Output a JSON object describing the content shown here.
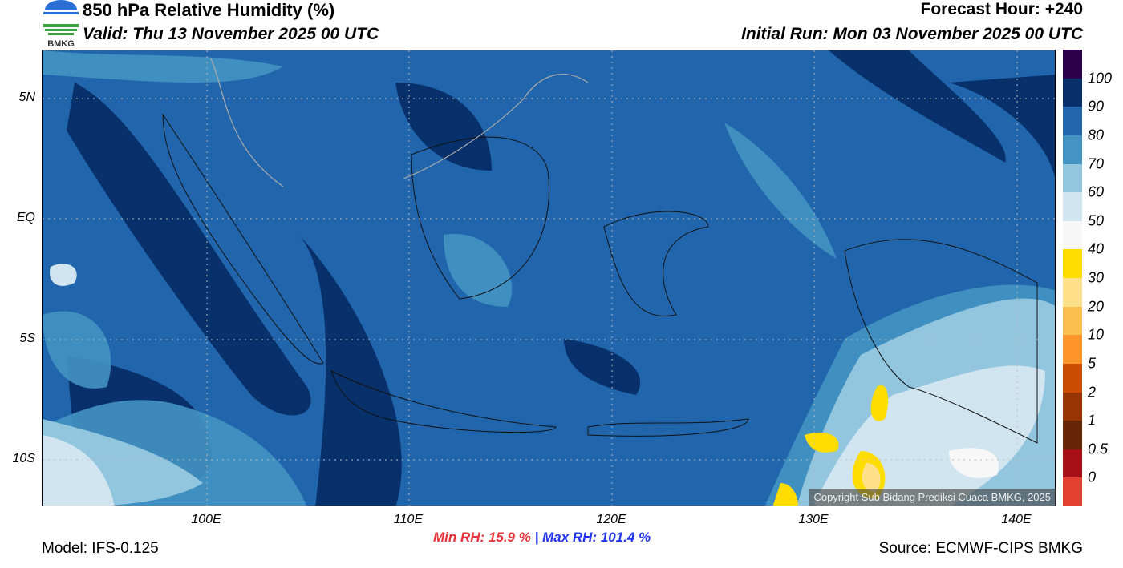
{
  "header": {
    "title": "850 hPa Relative Humidity (%)",
    "valid": "Valid: Thu 13 November 2025 00 UTC",
    "forecast_hour": "Forecast Hour: +240",
    "initial_run": "Initial Run: Mon 03 November 2025 00 UTC"
  },
  "logo": {
    "text": "BMKG"
  },
  "axes": {
    "x_ticks": [
      "100E",
      "110E",
      "120E",
      "130E",
      "140E"
    ],
    "y_ticks": [
      "5N",
      "EQ",
      "5S",
      "10S"
    ]
  },
  "colorbar": {
    "labels": [
      "100",
      "90",
      "80",
      "70",
      "60",
      "50",
      "40",
      "30",
      "20",
      "10",
      "5",
      "2",
      "1",
      "0.5",
      "0"
    ],
    "colors": [
      "#2d004b",
      "#08306b",
      "#2166ac",
      "#4393c3",
      "#92c5de",
      "#d1e5f0",
      "#f7f7f7",
      "#ffdd00",
      "#fee08b",
      "#fdbf50",
      "#fd952b",
      "#cc4c02",
      "#993404",
      "#662506",
      "#a50f15",
      "#e34132"
    ]
  },
  "footer": {
    "model": "Model: IFS-0.125",
    "min_rh": "Min RH:  15.9 %",
    "separator": "|",
    "max_rh": "Max RH: 101.4 %",
    "source": "Source: ECMWF-CIPS BMKG",
    "copyright": "Copyright Sub Bidang Prediksi Cuaca BMKG, 2025"
  }
}
